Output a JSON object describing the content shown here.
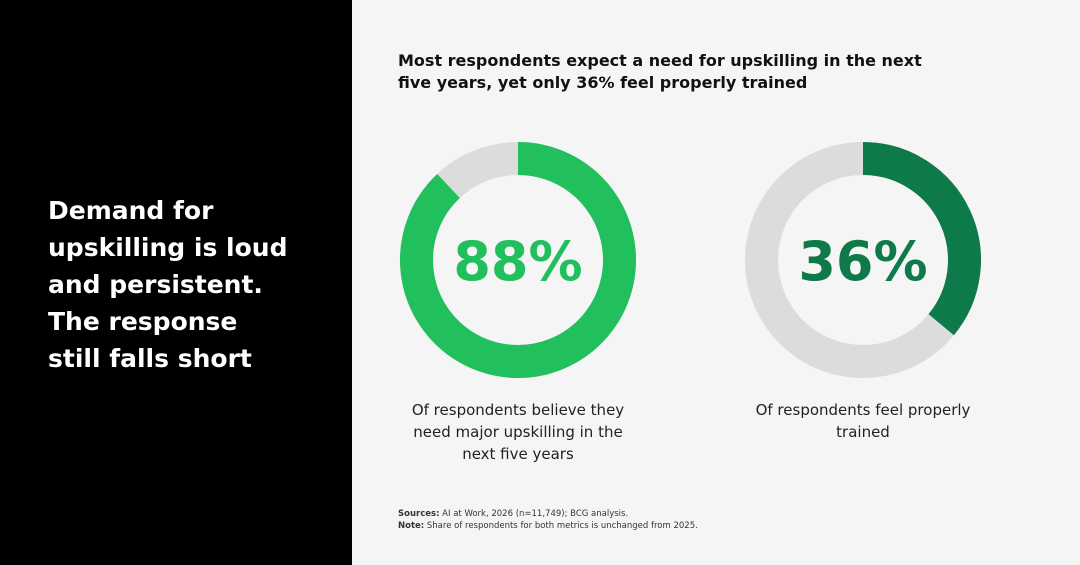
{
  "headline": "Demand for upskilling is loud and persistent. The response still falls short",
  "title": "Most respondents expect a need for upskilling in the next five years, yet only 36% feel properly trained",
  "chart_data": [
    {
      "type": "donut",
      "values": [
        88
      ],
      "value_labels": [
        "88%"
      ],
      "color": "#22c05d",
      "caption": "Of respondents believe they need major upskilling in the next five years"
    },
    {
      "type": "donut",
      "values": [
        36
      ],
      "value_labels": [
        "36%"
      ],
      "color": "#0e7a4a",
      "caption": "Of respondents feel properly trained"
    }
  ],
  "sources": {
    "label": "Sources:",
    "text": "AI at Work, 2026 (n=11,749); BCG analysis."
  },
  "note": {
    "label": "Note:",
    "text": "Share of respondents for both metrics is unchanged from 2025."
  }
}
